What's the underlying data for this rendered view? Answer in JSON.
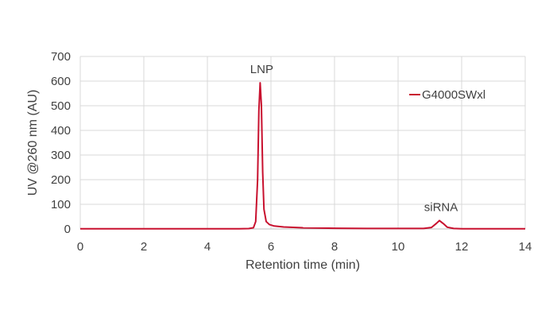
{
  "chart_data": {
    "type": "line",
    "xlabel": "Retention time (min)",
    "ylabel": "UV @260 nm (AU)",
    "xlim": [
      0,
      14
    ],
    "ylim": [
      0,
      700
    ],
    "x_ticks": [
      0,
      2,
      4,
      6,
      8,
      10,
      12,
      14
    ],
    "y_ticks": [
      0,
      100,
      200,
      300,
      400,
      500,
      600,
      700
    ],
    "grid": true,
    "legend_position": "top-right",
    "series": [
      {
        "name": "G4000SWxl",
        "color": "#C8102E",
        "points": [
          [
            0,
            1
          ],
          [
            2,
            1
          ],
          [
            4,
            1
          ],
          [
            5,
            1
          ],
          [
            5.3,
            1.5
          ],
          [
            5.45,
            5
          ],
          [
            5.52,
            30
          ],
          [
            5.58,
            200
          ],
          [
            5.62,
            480
          ],
          [
            5.66,
            593
          ],
          [
            5.7,
            500
          ],
          [
            5.74,
            230
          ],
          [
            5.78,
            80
          ],
          [
            5.85,
            30
          ],
          [
            5.95,
            18
          ],
          [
            6.1,
            12
          ],
          [
            6.4,
            8
          ],
          [
            7,
            5
          ],
          [
            8,
            3
          ],
          [
            9,
            2
          ],
          [
            10,
            2
          ],
          [
            10.8,
            2
          ],
          [
            11.05,
            6
          ],
          [
            11.2,
            22
          ],
          [
            11.3,
            34
          ],
          [
            11.42,
            22
          ],
          [
            11.55,
            7
          ],
          [
            11.75,
            2
          ],
          [
            12,
            1
          ],
          [
            14,
            1
          ]
        ]
      }
    ],
    "annotations": [
      {
        "text": "LNP",
        "x": 5.66,
        "y": 593
      },
      {
        "text": "siRNA",
        "x": 11.3,
        "y": 34
      }
    ]
  }
}
